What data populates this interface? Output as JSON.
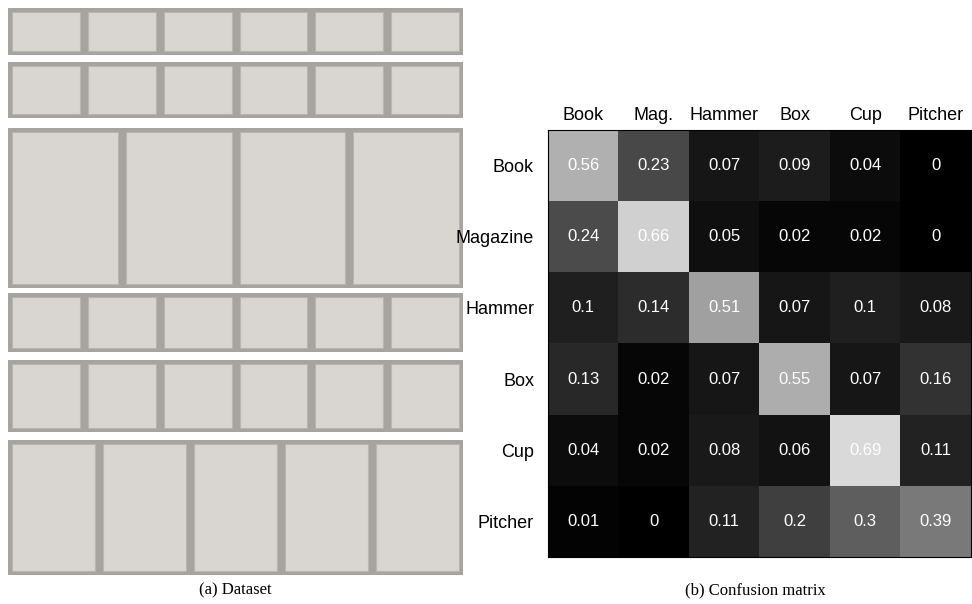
{
  "chart_data": {
    "type": "heatmap",
    "title": "(b) Confusion matrix",
    "annotations": [
      "(a) Dataset"
    ],
    "x_categories": [
      "Book",
      "Mag.",
      "Hammer",
      "Box",
      "Cup",
      "Pitcher"
    ],
    "y_categories": [
      "Book",
      "Magazine",
      "Hammer",
      "Box",
      "Cup",
      "Pitcher"
    ],
    "cells": [
      [
        0.56,
        0.23,
        0.07,
        0.09,
        0.04,
        0
      ],
      [
        0.24,
        0.66,
        0.05,
        0.02,
        0.02,
        0
      ],
      [
        0.1,
        0.14,
        0.51,
        0.07,
        0.1,
        0.08
      ],
      [
        0.13,
        0.02,
        0.07,
        0.55,
        0.07,
        0.16
      ],
      [
        0.04,
        0.02,
        0.08,
        0.06,
        0.69,
        0.11
      ],
      [
        0.01,
        0,
        0.11,
        0.2,
        0.3,
        0.39
      ]
    ],
    "data_labels": true
  }
}
